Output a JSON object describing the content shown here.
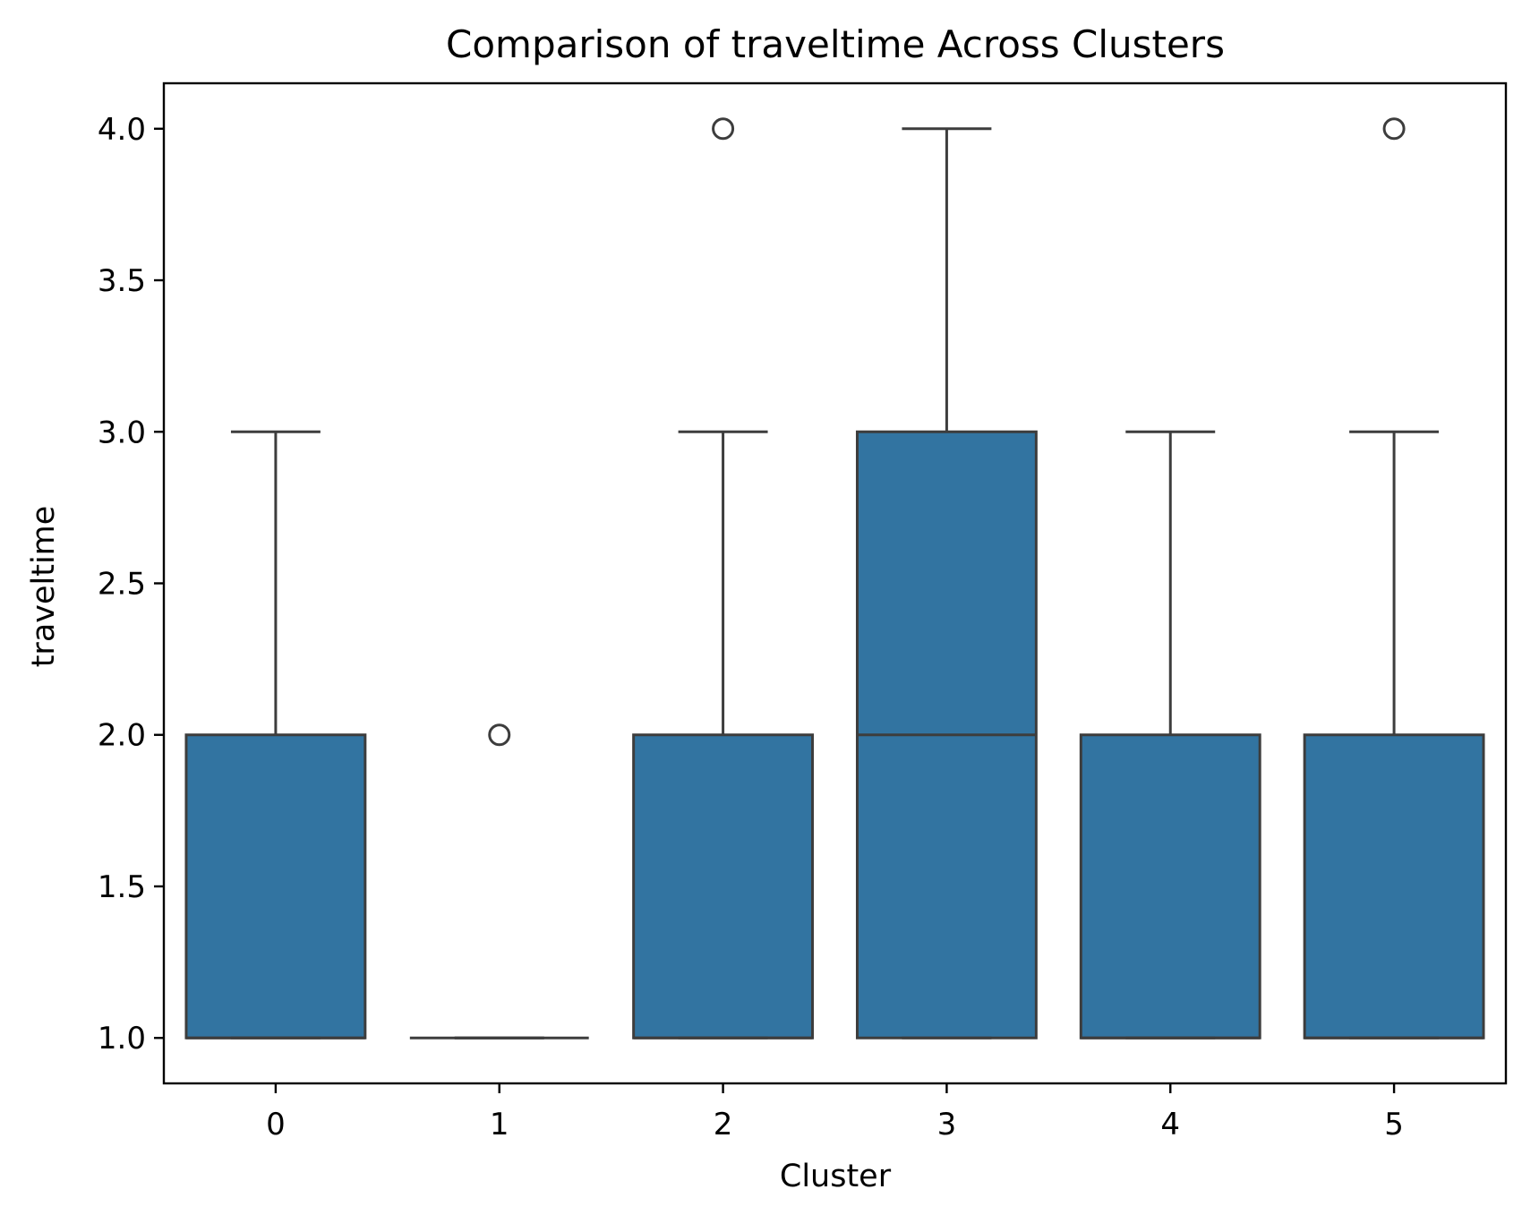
{
  "chart_data": {
    "type": "box",
    "title": "Comparison of traveltime Across Clusters",
    "xlabel": "Cluster",
    "ylabel": "traveltime",
    "categories": [
      "0",
      "1",
      "2",
      "3",
      "4",
      "5"
    ],
    "ylim": [
      0.85,
      4.15
    ],
    "yticks": [
      1.0,
      1.5,
      2.0,
      2.5,
      3.0,
      3.5,
      4.0
    ],
    "ytick_labels": [
      "1.0",
      "1.5",
      "2.0",
      "2.5",
      "3.0",
      "3.5",
      "4.0"
    ],
    "boxes": [
      {
        "category": "0",
        "whisker_low": 1.0,
        "q1": 1.0,
        "median": 1.0,
        "q3": 2.0,
        "whisker_high": 3.0,
        "outliers": []
      },
      {
        "category": "1",
        "whisker_low": 1.0,
        "q1": 1.0,
        "median": 1.0,
        "q3": 1.0,
        "whisker_high": 1.0,
        "outliers": [
          2.0
        ]
      },
      {
        "category": "2",
        "whisker_low": 1.0,
        "q1": 1.0,
        "median": 1.0,
        "q3": 2.0,
        "whisker_high": 3.0,
        "outliers": [
          4.0
        ]
      },
      {
        "category": "3",
        "whisker_low": 1.0,
        "q1": 1.0,
        "median": 2.0,
        "q3": 3.0,
        "whisker_high": 4.0,
        "outliers": []
      },
      {
        "category": "4",
        "whisker_low": 1.0,
        "q1": 1.0,
        "median": 1.0,
        "q3": 2.0,
        "whisker_high": 3.0,
        "outliers": []
      },
      {
        "category": "5",
        "whisker_low": 1.0,
        "q1": 1.0,
        "median": 1.0,
        "q3": 2.0,
        "whisker_high": 3.0,
        "outliers": [
          4.0
        ]
      }
    ],
    "grid": false,
    "legend": "none",
    "colors": {
      "box_fill": "#3274a1",
      "line": "#3d3d3d",
      "axes": "#000000"
    }
  }
}
